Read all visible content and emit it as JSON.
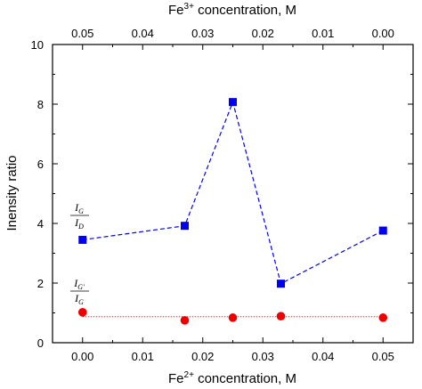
{
  "chart_data": {
    "type": "scatter",
    "x_bottom": {
      "label_main": "Fe",
      "label_sup": "2+",
      "label_rest": " concentration, M",
      "lim": [
        -0.005,
        0.055
      ],
      "ticks": [
        "0.00",
        "0.01",
        "0.02",
        "0.03",
        "0.04",
        "0.05"
      ],
      "tick_values": [
        0,
        0.01,
        0.02,
        0.03,
        0.04,
        0.05
      ]
    },
    "x_top": {
      "label_main": "Fe",
      "label_sup": "3+",
      "label_rest": " concentration, M",
      "ticks": [
        "0.05",
        "0.04",
        "0.03",
        "0.02",
        "0.01",
        "0.00"
      ],
      "tick_values": [
        0,
        0.01,
        0.02,
        0.03,
        0.04,
        0.05
      ]
    },
    "y": {
      "label": "Inensity ratio",
      "lim": [
        0,
        10
      ],
      "ticks": [
        "0",
        "2",
        "4",
        "6",
        "8",
        "10"
      ],
      "tick_values": [
        0,
        2,
        4,
        6,
        8,
        10
      ]
    },
    "series": [
      {
        "name_num": "I",
        "name_num_sub": "G",
        "name_den": "I",
        "name_den_sub": "D",
        "marker": "square",
        "color": "#0000ee",
        "line": "dashed",
        "x": [
          0.0,
          0.017,
          0.025,
          0.033,
          0.05
        ],
        "y": [
          3.45,
          3.92,
          8.07,
          1.98,
          3.76
        ]
      },
      {
        "name_num": "I",
        "name_num_sub": "G'",
        "name_den": "I",
        "name_den_sub": "G",
        "marker": "circle",
        "color": "#ee0000",
        "line": "dotted-flat",
        "line_level": 0.87,
        "x": [
          0.0,
          0.017,
          0.025,
          0.033,
          0.05
        ],
        "y": [
          1.02,
          0.75,
          0.84,
          0.89,
          0.84
        ]
      }
    ]
  }
}
